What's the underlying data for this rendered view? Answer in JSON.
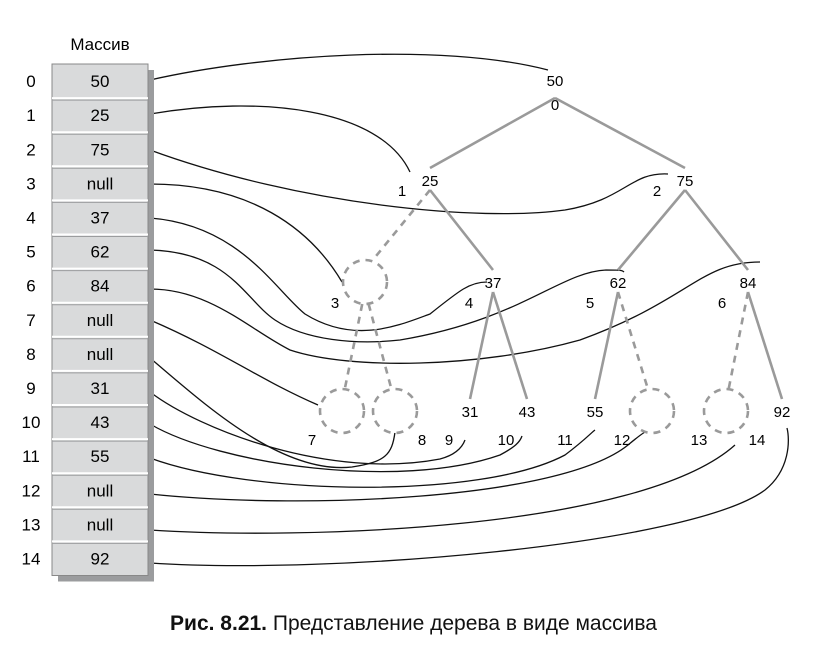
{
  "array": {
    "title": "Массив",
    "cells": [
      {
        "index": "0",
        "value": "50"
      },
      {
        "index": "1",
        "value": "25"
      },
      {
        "index": "2",
        "value": "75"
      },
      {
        "index": "3",
        "value": "null"
      },
      {
        "index": "4",
        "value": "37"
      },
      {
        "index": "5",
        "value": "62"
      },
      {
        "index": "6",
        "value": "84"
      },
      {
        "index": "7",
        "value": "null"
      },
      {
        "index": "8",
        "value": "null"
      },
      {
        "index": "9",
        "value": "31"
      },
      {
        "index": "10",
        "value": "43"
      },
      {
        "index": "11",
        "value": "55"
      },
      {
        "index": "12",
        "value": "null"
      },
      {
        "index": "13",
        "value": "null"
      },
      {
        "index": "14",
        "value": "92"
      }
    ]
  },
  "tree": {
    "nodes": [
      {
        "index": "0",
        "value": "50",
        "empty": false
      },
      {
        "index": "1",
        "value": "25",
        "empty": false
      },
      {
        "index": "2",
        "value": "75",
        "empty": false
      },
      {
        "index": "3",
        "value": "",
        "empty": true
      },
      {
        "index": "4",
        "value": "37",
        "empty": false
      },
      {
        "index": "5",
        "value": "62",
        "empty": false
      },
      {
        "index": "6",
        "value": "84",
        "empty": false
      },
      {
        "index": "7",
        "value": "",
        "empty": true
      },
      {
        "index": "8",
        "value": "",
        "empty": true
      },
      {
        "index": "9",
        "value": "31",
        "empty": false
      },
      {
        "index": "10",
        "value": "43",
        "empty": false
      },
      {
        "index": "11",
        "value": "55",
        "empty": false
      },
      {
        "index": "12",
        "value": "",
        "empty": true
      },
      {
        "index": "13",
        "value": "",
        "empty": true
      },
      {
        "index": "14",
        "value": "92",
        "empty": false
      }
    ],
    "edges": [
      [
        0,
        1
      ],
      [
        0,
        2
      ],
      [
        1,
        3
      ],
      [
        1,
        4
      ],
      [
        2,
        5
      ],
      [
        2,
        6
      ],
      [
        3,
        7
      ],
      [
        3,
        8
      ],
      [
        4,
        9
      ],
      [
        4,
        10
      ],
      [
        5,
        11
      ],
      [
        5,
        12
      ],
      [
        6,
        13
      ],
      [
        6,
        14
      ]
    ],
    "colors": {
      "edge": "#9a9a9a",
      "cell_fill": "#d9dadb",
      "cell_shadow": "#9b9c9e",
      "link": "#111111"
    }
  },
  "caption": {
    "label": "Рис. 8.21.",
    "text": "Представление дерева в виде массива"
  }
}
